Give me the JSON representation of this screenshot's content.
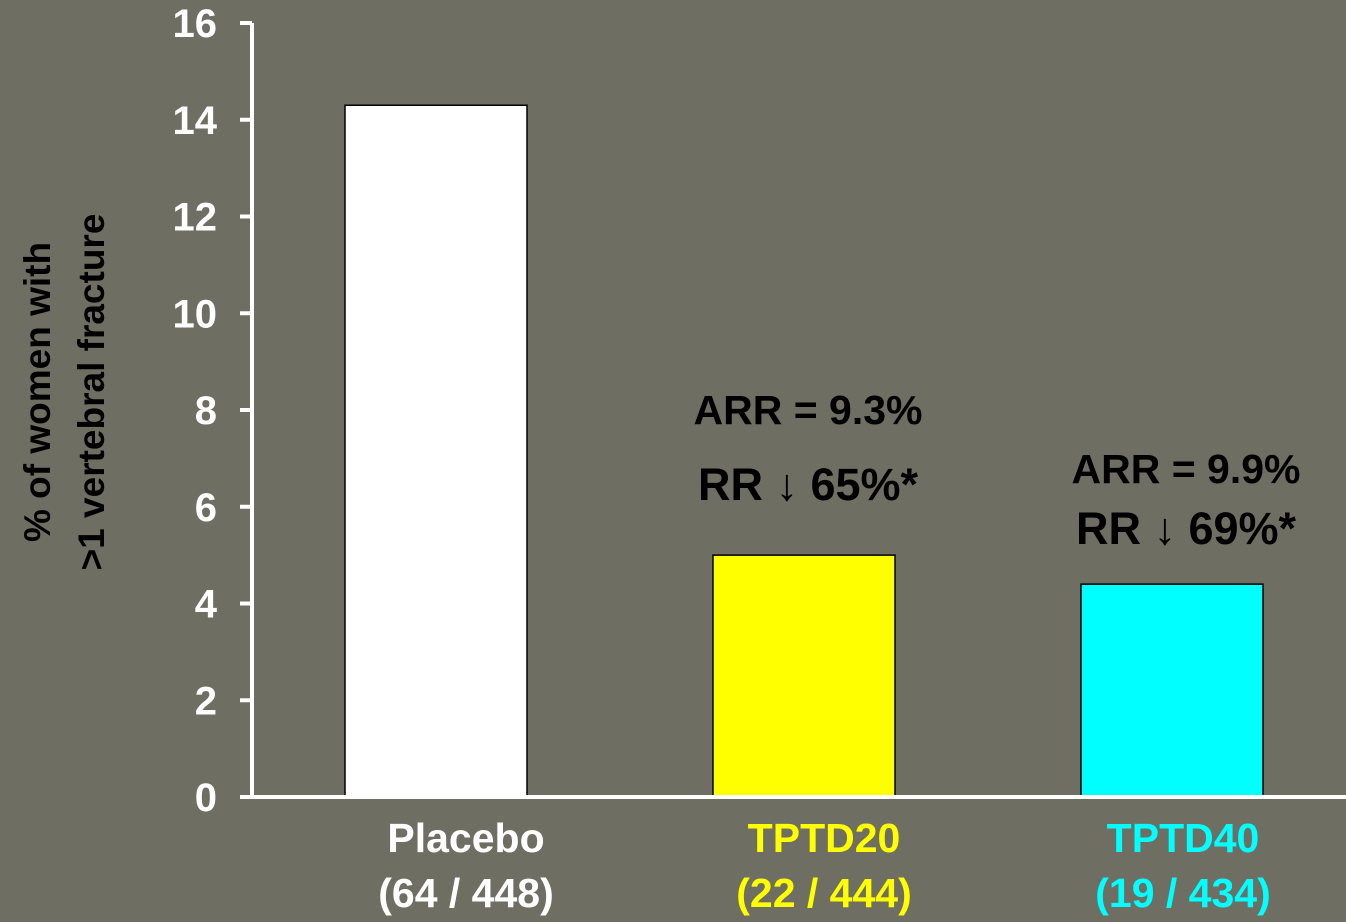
{
  "chart_data": {
    "type": "bar",
    "title": "",
    "xlabel": "",
    "ylabel_line1": "% of women with",
    "ylabel_line2": ">1 vertebral fracture",
    "ylim": [
      0,
      16
    ],
    "yticks": [
      0,
      2,
      4,
      6,
      8,
      10,
      12,
      14,
      16
    ],
    "grid": false,
    "categories": [
      "Placebo",
      "TPTD20",
      "TPTD40"
    ],
    "subcategories": [
      "(64 / 448)",
      "(22 / 444)",
      "(19 / 434)"
    ],
    "values": [
      14.3,
      5.0,
      4.4
    ],
    "colors": [
      "#ffffff",
      "#ffff00",
      "#00ffff"
    ],
    "label_colors": [
      "#ffffff",
      "#ffff00",
      "#00ffff"
    ],
    "annotations": [
      {
        "category": "TPTD20",
        "arr": "ARR = 9.3%",
        "rr": "RR ↓ 65%*"
      },
      {
        "category": "TPTD40",
        "arr": "ARR = 9.9%",
        "rr": "RR ↓ 69%*"
      }
    ]
  },
  "colors": {
    "background": "#6e6f62",
    "axis": "#ffffff",
    "annotation_text": "#000000",
    "tick_text": "#ffffff",
    "axis_label_text": "#000000"
  }
}
